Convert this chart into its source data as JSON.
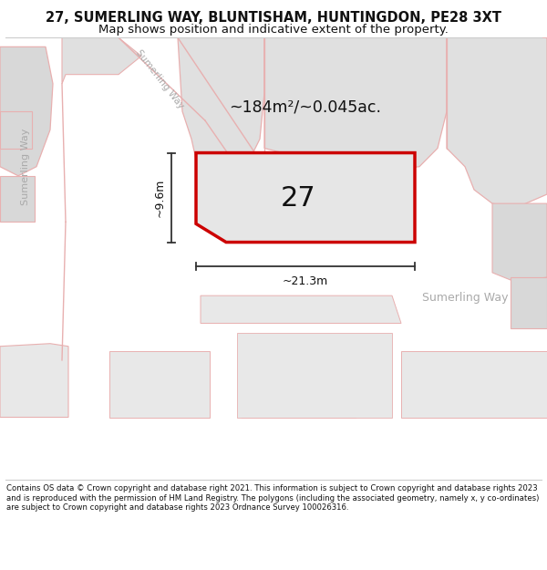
{
  "title_line1": "27, SUMERLING WAY, BLUNTISHAM, HUNTINGDON, PE28 3XT",
  "title_line2": "Map shows position and indicative extent of the property.",
  "footer_text": "Contains OS data © Crown copyright and database right 2021. This information is subject to Crown copyright and database rights 2023 and is reproduced with the permission of HM Land Registry. The polygons (including the associated geometry, namely x, y co-ordinates) are subject to Crown copyright and database rights 2023 Ordnance Survey 100026316.",
  "property_number": "27",
  "area_text": "~184m²/~0.045ac.",
  "width_text": "~21.3m",
  "height_text": "~9.6m",
  "road_label_left": "Sumerling Way",
  "road_label_diag": "Sumerling Way",
  "road_label_right": "Sumerling Way",
  "bg_color": "#f0f0f0",
  "map_white": "#ffffff",
  "plot_outline_color": "#cc0000",
  "plot_fill_color": "#e6e6e6",
  "bld_light": "#e8e8e8",
  "bld_mid": "#e0e0e0",
  "bld_dark": "#d8d8d8",
  "road_outline": "#e8b0b0",
  "title_fontsize": 10.5,
  "subtitle_fontsize": 9.5,
  "footer_fontsize": 6.1
}
